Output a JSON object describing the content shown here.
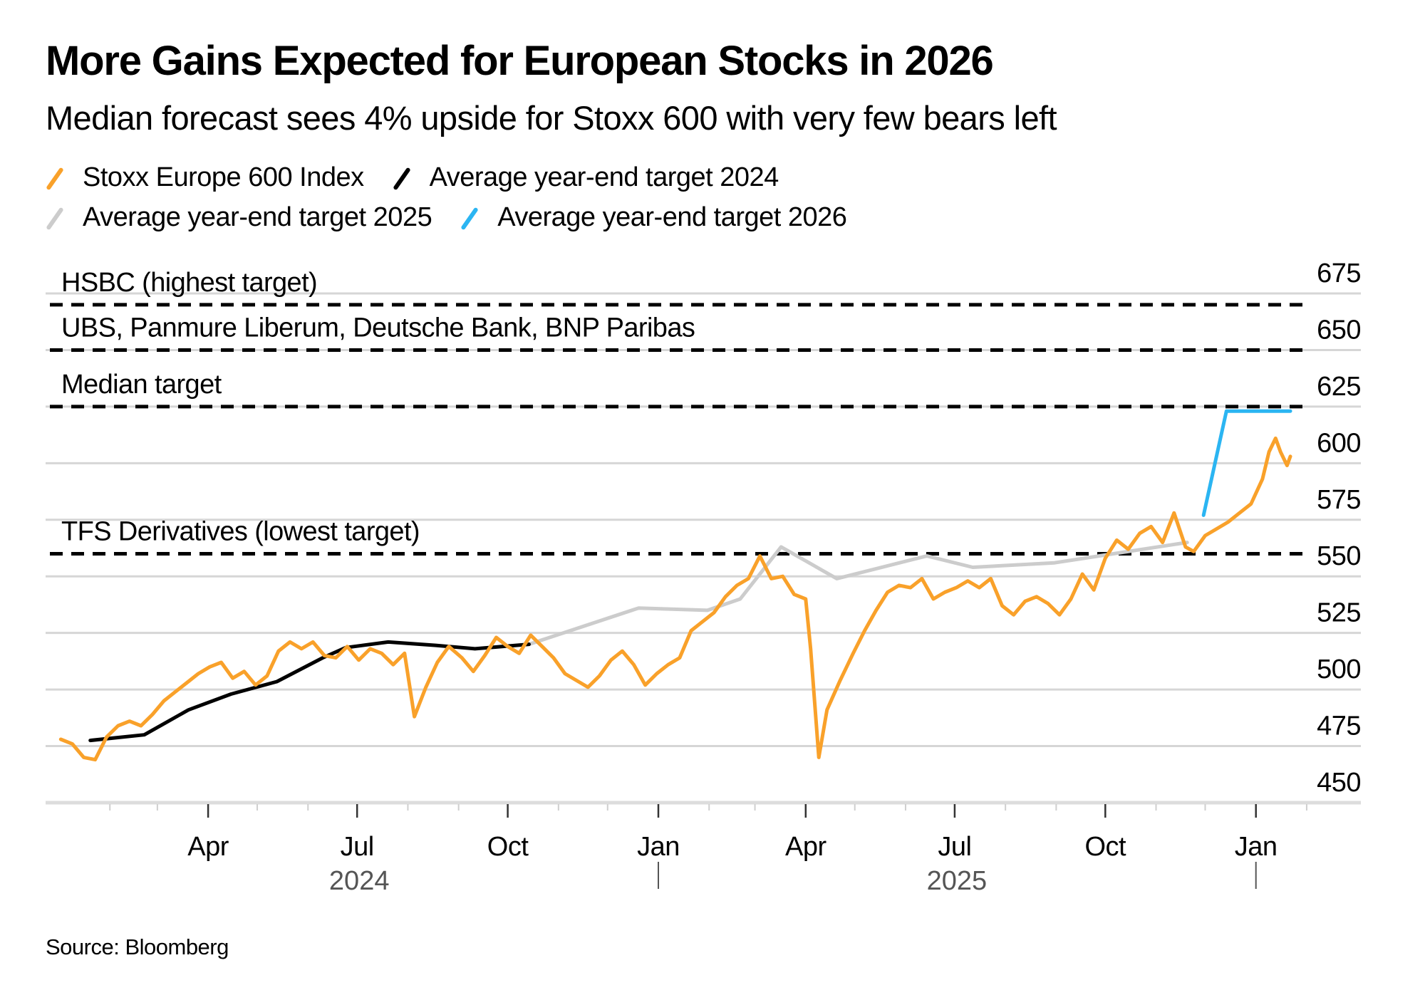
{
  "chart_data": {
    "type": "line",
    "title": "More Gains Expected for European Stocks in 2026",
    "subtitle": "Median forecast sees 4% upside for Stoxx 600 with very few bears left",
    "source": "Source: Bloomberg",
    "xlabel": "",
    "ylabel": "",
    "ylim": [
      450,
      675
    ],
    "yticks": [
      675,
      650,
      625,
      600,
      575,
      550,
      525,
      500,
      475,
      450
    ],
    "xlim": [
      "2024-01-01",
      "2026-02-15"
    ],
    "xticks": [
      {
        "date": "2024-04-01",
        "label": "Apr"
      },
      {
        "date": "2024-07-01",
        "label": "Jul"
      },
      {
        "date": "2024-10-01",
        "label": "Oct"
      },
      {
        "date": "2025-01-01",
        "label": "Jan"
      },
      {
        "date": "2025-04-01",
        "label": "Apr"
      },
      {
        "date": "2025-07-01",
        "label": "Jul"
      },
      {
        "date": "2025-10-01",
        "label": "Oct"
      },
      {
        "date": "2026-01-01",
        "label": "Jan"
      }
    ],
    "year_labels": [
      {
        "date": "2024-07-01",
        "label": "2024"
      },
      {
        "date": "2025-07-01",
        "label": "2025"
      }
    ],
    "year_separators": [
      "2025-01-01",
      "2026-01-01"
    ],
    "grid": true,
    "legend_position": "top-left",
    "legend": [
      {
        "name": "Stoxx Europe 600 Index",
        "color": "#F9A12A"
      },
      {
        "name": "Average year-end target 2024",
        "color": "#000000"
      },
      {
        "name": "Average year-end target 2025",
        "color": "#CCCCCC"
      },
      {
        "name": "Average year-end target 2026",
        "color": "#2BB5F2"
      }
    ],
    "reference_lines": [
      {
        "label": "HSBC (highest target)",
        "value": 670
      },
      {
        "label": "UBS, Panmure Liberum, Deutsche Bank, BNP Paribas",
        "value": 650
      },
      {
        "label": "Median target",
        "value": 625
      },
      {
        "label": "TFS Derivatives (lowest target)",
        "value": 560
      }
    ],
    "series": [
      {
        "name": "Stoxx Europe 600 Index",
        "color": "#F9A12A",
        "points": [
          [
            "2024-01-02",
            478
          ],
          [
            "2024-01-09",
            476
          ],
          [
            "2024-01-16",
            470
          ],
          [
            "2024-01-23",
            469
          ],
          [
            "2024-01-30",
            479
          ],
          [
            "2024-02-06",
            484
          ],
          [
            "2024-02-13",
            486
          ],
          [
            "2024-02-20",
            484
          ],
          [
            "2024-02-27",
            489
          ],
          [
            "2024-03-05",
            495
          ],
          [
            "2024-03-12",
            499
          ],
          [
            "2024-03-19",
            503
          ],
          [
            "2024-03-26",
            507
          ],
          [
            "2024-04-02",
            510
          ],
          [
            "2024-04-09",
            512
          ],
          [
            "2024-04-16",
            505
          ],
          [
            "2024-04-23",
            508
          ],
          [
            "2024-04-30",
            502
          ],
          [
            "2024-05-07",
            506
          ],
          [
            "2024-05-14",
            517
          ],
          [
            "2024-05-21",
            521
          ],
          [
            "2024-05-28",
            518
          ],
          [
            "2024-06-04",
            521
          ],
          [
            "2024-06-11",
            515
          ],
          [
            "2024-06-18",
            514
          ],
          [
            "2024-06-25",
            519
          ],
          [
            "2024-07-02",
            513
          ],
          [
            "2024-07-09",
            518
          ],
          [
            "2024-07-16",
            516
          ],
          [
            "2024-07-23",
            511
          ],
          [
            "2024-07-30",
            516
          ],
          [
            "2024-08-05",
            488
          ],
          [
            "2024-08-12",
            501
          ],
          [
            "2024-08-19",
            512
          ],
          [
            "2024-08-26",
            519
          ],
          [
            "2024-09-03",
            514
          ],
          [
            "2024-09-10",
            508
          ],
          [
            "2024-09-17",
            515
          ],
          [
            "2024-09-24",
            523
          ],
          [
            "2024-10-01",
            519
          ],
          [
            "2024-10-08",
            516
          ],
          [
            "2024-10-15",
            524
          ],
          [
            "2024-10-22",
            519
          ],
          [
            "2024-10-29",
            514
          ],
          [
            "2024-11-05",
            507
          ],
          [
            "2024-11-12",
            504
          ],
          [
            "2024-11-19",
            501
          ],
          [
            "2024-11-26",
            506
          ],
          [
            "2024-12-03",
            513
          ],
          [
            "2024-12-10",
            517
          ],
          [
            "2024-12-17",
            511
          ],
          [
            "2024-12-24",
            502
          ],
          [
            "2024-12-31",
            507
          ],
          [
            "2025-01-07",
            511
          ],
          [
            "2025-01-14",
            514
          ],
          [
            "2025-01-21",
            526
          ],
          [
            "2025-01-28",
            530
          ],
          [
            "2025-02-04",
            534
          ],
          [
            "2025-02-11",
            541
          ],
          [
            "2025-02-18",
            546
          ],
          [
            "2025-02-25",
            549
          ],
          [
            "2025-03-04",
            559
          ],
          [
            "2025-03-11",
            549
          ],
          [
            "2025-03-18",
            550
          ],
          [
            "2025-03-25",
            542
          ],
          [
            "2025-04-01",
            540
          ],
          [
            "2025-04-04",
            518
          ],
          [
            "2025-04-09",
            470
          ],
          [
            "2025-04-14",
            491
          ],
          [
            "2025-04-22",
            504
          ],
          [
            "2025-04-30",
            516
          ],
          [
            "2025-05-07",
            526
          ],
          [
            "2025-05-14",
            535
          ],
          [
            "2025-05-21",
            543
          ],
          [
            "2025-05-28",
            546
          ],
          [
            "2025-06-04",
            545
          ],
          [
            "2025-06-11",
            549
          ],
          [
            "2025-06-18",
            540
          ],
          [
            "2025-06-25",
            543
          ],
          [
            "2025-07-02",
            545
          ],
          [
            "2025-07-09",
            548
          ],
          [
            "2025-07-16",
            545
          ],
          [
            "2025-07-23",
            549
          ],
          [
            "2025-07-30",
            537
          ],
          [
            "2025-08-06",
            533
          ],
          [
            "2025-08-13",
            539
          ],
          [
            "2025-08-20",
            541
          ],
          [
            "2025-08-27",
            538
          ],
          [
            "2025-09-03",
            533
          ],
          [
            "2025-09-10",
            540
          ],
          [
            "2025-09-17",
            551
          ],
          [
            "2025-09-24",
            544
          ],
          [
            "2025-10-01",
            558
          ],
          [
            "2025-10-08",
            566
          ],
          [
            "2025-10-15",
            562
          ],
          [
            "2025-10-22",
            569
          ],
          [
            "2025-10-29",
            572
          ],
          [
            "2025-11-05",
            565
          ],
          [
            "2025-11-12",
            578
          ],
          [
            "2025-11-19",
            563
          ],
          [
            "2025-11-24",
            561
          ],
          [
            "2025-12-01",
            568
          ],
          [
            "2025-12-08",
            571
          ],
          [
            "2025-12-15",
            574
          ],
          [
            "2025-12-22",
            578
          ],
          [
            "2025-12-29",
            582
          ],
          [
            "2026-01-05",
            593
          ],
          [
            "2026-01-09",
            605
          ],
          [
            "2026-01-13",
            611
          ],
          [
            "2026-01-16",
            605
          ],
          [
            "2026-01-20",
            599
          ],
          [
            "2026-01-22",
            603
          ]
        ]
      },
      {
        "name": "Average year-end target 2024",
        "color": "#000000",
        "points": [
          [
            "2024-01-20",
            477.5
          ],
          [
            "2024-02-22",
            480
          ],
          [
            "2024-03-20",
            491
          ],
          [
            "2024-04-15",
            498
          ],
          [
            "2024-05-13",
            503.5
          ],
          [
            "2024-06-10",
            514
          ],
          [
            "2024-06-24",
            518.5
          ],
          [
            "2024-07-20",
            521
          ],
          [
            "2024-08-18",
            519.5
          ],
          [
            "2024-09-11",
            518
          ],
          [
            "2024-10-14",
            520
          ]
        ]
      },
      {
        "name": "Average year-end target 2025",
        "color": "#CCCCCC",
        "points": [
          [
            "2024-10-14",
            520
          ],
          [
            "2024-12-20",
            536
          ],
          [
            "2025-01-31",
            535
          ],
          [
            "2025-02-20",
            540
          ],
          [
            "2025-03-17",
            563
          ],
          [
            "2025-04-20",
            549
          ],
          [
            "2025-06-14",
            559
          ],
          [
            "2025-07-12",
            554
          ],
          [
            "2025-08-31",
            556
          ],
          [
            "2025-11-20",
            565
          ]
        ]
      },
      {
        "name": "Average year-end target 2026",
        "color": "#2BB5F2",
        "points": [
          [
            "2025-11-30",
            577
          ],
          [
            "2025-12-14",
            623
          ],
          [
            "2026-01-22",
            623
          ]
        ]
      }
    ]
  }
}
